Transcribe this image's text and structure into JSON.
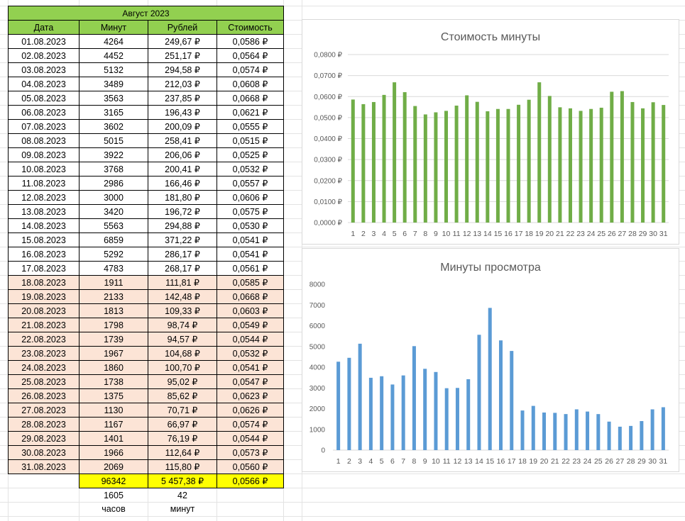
{
  "sheet": {
    "title": "Август 2023",
    "headers": [
      "Дата",
      "Минут",
      "Рублей",
      "Стоимость"
    ],
    "rows": [
      [
        "01.08.2023",
        "4264",
        "249,67 ₽",
        "0,0586 ₽"
      ],
      [
        "02.08.2023",
        "4452",
        "251,17 ₽",
        "0,0564 ₽"
      ],
      [
        "03.08.2023",
        "5132",
        "294,58 ₽",
        "0,0574 ₽"
      ],
      [
        "04.08.2023",
        "3489",
        "212,03 ₽",
        "0,0608 ₽"
      ],
      [
        "05.08.2023",
        "3563",
        "237,85 ₽",
        "0,0668 ₽"
      ],
      [
        "06.08.2023",
        "3165",
        "196,43 ₽",
        "0,0621 ₽"
      ],
      [
        "07.08.2023",
        "3602",
        "200,09 ₽",
        "0,0555 ₽"
      ],
      [
        "08.08.2023",
        "5015",
        "258,41 ₽",
        "0,0515 ₽"
      ],
      [
        "09.08.2023",
        "3922",
        "206,06 ₽",
        "0,0525 ₽"
      ],
      [
        "10.08.2023",
        "3768",
        "200,41 ₽",
        "0,0532 ₽"
      ],
      [
        "11.08.2023",
        "2986",
        "166,46 ₽",
        "0,0557 ₽"
      ],
      [
        "12.08.2023",
        "3000",
        "181,80 ₽",
        "0,0606 ₽"
      ],
      [
        "13.08.2023",
        "3420",
        "196,72 ₽",
        "0,0575 ₽"
      ],
      [
        "14.08.2023",
        "5563",
        "294,88 ₽",
        "0,0530 ₽"
      ],
      [
        "15.08.2023",
        "6859",
        "371,22 ₽",
        "0,0541 ₽"
      ],
      [
        "16.08.2023",
        "5292",
        "286,17 ₽",
        "0,0541 ₽"
      ],
      [
        "17.08.2023",
        "4783",
        "268,17 ₽",
        "0,0561 ₽"
      ],
      [
        "18.08.2023",
        "1911",
        "111,81 ₽",
        "0,0585 ₽"
      ],
      [
        "19.08.2023",
        "2133",
        "142,48 ₽",
        "0,0668 ₽"
      ],
      [
        "20.08.2023",
        "1813",
        "109,33 ₽",
        "0,0603 ₽"
      ],
      [
        "21.08.2023",
        "1798",
        "98,74 ₽",
        "0,0549 ₽"
      ],
      [
        "22.08.2023",
        "1739",
        "94,57 ₽",
        "0,0544 ₽"
      ],
      [
        "23.08.2023",
        "1967",
        "104,68 ₽",
        "0,0532 ₽"
      ],
      [
        "24.08.2023",
        "1860",
        "100,70 ₽",
        "0,0541 ₽"
      ],
      [
        "25.08.2023",
        "1738",
        "95,02 ₽",
        "0,0547 ₽"
      ],
      [
        "26.08.2023",
        "1375",
        "85,62 ₽",
        "0,0623 ₽"
      ],
      [
        "27.08.2023",
        "1130",
        "70,71 ₽",
        "0,0626 ₽"
      ],
      [
        "28.08.2023",
        "1167",
        "66,97 ₽",
        "0,0574 ₽"
      ],
      [
        "29.08.2023",
        "1401",
        "76,19 ₽",
        "0,0544 ₽"
      ],
      [
        "30.08.2023",
        "1966",
        "112,64 ₽",
        "0,0573 ₽"
      ],
      [
        "31.08.2023",
        "2069",
        "115,80 ₽",
        "0,0560 ₽"
      ]
    ],
    "highlighted_from_row": 17,
    "totals": {
      "minutes": "96342",
      "rubles": "5 457,38 ₽",
      "cost": "0,0566 ₽"
    },
    "hours_value": "1605",
    "minutes_value": "42",
    "hours_label": "часов",
    "minutes_label": "минут"
  },
  "colors": {
    "header_green": "#92d050",
    "highlight_row": "#fce4d6",
    "total_yellow": "#ffff00",
    "bar_green": "#70ad47",
    "bar_blue": "#5b9bd5"
  },
  "chart_data": [
    {
      "type": "bar",
      "title": "Стоимость минуты",
      "categories": [
        "1",
        "2",
        "3",
        "4",
        "5",
        "6",
        "7",
        "8",
        "9",
        "10",
        "11",
        "12",
        "13",
        "14",
        "15",
        "16",
        "17",
        "18",
        "19",
        "20",
        "21",
        "22",
        "23",
        "24",
        "25",
        "26",
        "27",
        "28",
        "29",
        "30",
        "31"
      ],
      "values": [
        0.0586,
        0.0564,
        0.0574,
        0.0608,
        0.0668,
        0.0621,
        0.0555,
        0.0515,
        0.0525,
        0.0532,
        0.0557,
        0.0606,
        0.0575,
        0.053,
        0.0541,
        0.0541,
        0.0561,
        0.0585,
        0.0668,
        0.0603,
        0.0549,
        0.0544,
        0.0532,
        0.0541,
        0.0547,
        0.0623,
        0.0626,
        0.0574,
        0.0544,
        0.0573,
        0.056
      ],
      "ylim": [
        0,
        0.08
      ],
      "yticks": [
        "0,0000 ₽",
        "0,0100 ₽",
        "0,0200 ₽",
        "0,0300 ₽",
        "0,0400 ₽",
        "0,0500 ₽",
        "0,0600 ₽",
        "0,0700 ₽",
        "0,0800 ₽"
      ],
      "grid": true,
      "color": "#70ad47"
    },
    {
      "type": "bar",
      "title": "Минуты просмотра",
      "categories": [
        "1",
        "2",
        "3",
        "4",
        "5",
        "6",
        "7",
        "8",
        "9",
        "10",
        "11",
        "12",
        "13",
        "14",
        "15",
        "16",
        "17",
        "18",
        "19",
        "20",
        "21",
        "22",
        "23",
        "24",
        "25",
        "26",
        "27",
        "28",
        "29",
        "30",
        "31"
      ],
      "values": [
        4264,
        4452,
        5132,
        3489,
        3563,
        3165,
        3602,
        5015,
        3922,
        3768,
        2986,
        3000,
        3420,
        5563,
        6859,
        5292,
        4783,
        1911,
        2133,
        1813,
        1798,
        1739,
        1967,
        1860,
        1738,
        1375,
        1130,
        1167,
        1401,
        1966,
        2069
      ],
      "ylim": [
        0,
        8000
      ],
      "yticks": [
        "0",
        "1000",
        "2000",
        "3000",
        "4000",
        "5000",
        "6000",
        "7000",
        "8000"
      ],
      "grid": false,
      "color": "#5b9bd5"
    }
  ]
}
